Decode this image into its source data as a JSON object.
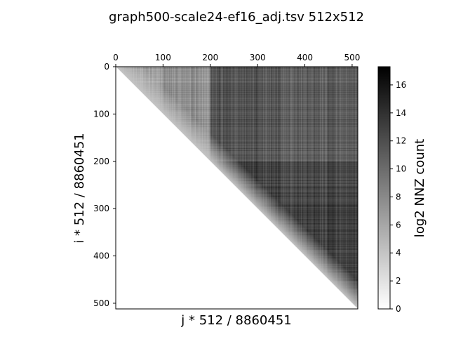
{
  "chart_data": {
    "type": "heatmap",
    "title": "graph500-scale24-ef16_adj.tsv 512x512",
    "xlabel": "j * 512 / 8860451",
    "ylabel": "i * 512 / 8860451",
    "matrix_size": 512,
    "triangle": "upper",
    "x_axis_position": "top",
    "xlim": [
      0,
      512
    ],
    "ylim": [
      512,
      0
    ],
    "x_ticks": [
      0,
      100,
      200,
      300,
      400,
      500
    ],
    "y_ticks": [
      0,
      100,
      200,
      300,
      400,
      500
    ],
    "colormap": "Greys",
    "colorbar": {
      "label": "log2 NNZ count",
      "min": 0,
      "max": 17.3,
      "ticks": [
        0,
        2,
        4,
        6,
        8,
        10,
        12,
        14,
        16
      ]
    },
    "value_profile": {
      "description_of_tone": "estimated log2 NNZ count level per column band",
      "column_bands": [
        {
          "j_start": 0,
          "j_end": 100,
          "level": 6.5
        },
        {
          "j_start": 100,
          "j_end": 200,
          "level": 7.5
        },
        {
          "j_start": 200,
          "j_end": 300,
          "level": 11.5
        },
        {
          "j_start": 300,
          "j_end": 400,
          "level": 11.0
        },
        {
          "j_start": 400,
          "j_end": 512,
          "level": 11.0
        }
      ],
      "row_band_offsets": [
        {
          "i_start": 0,
          "i_end": 200,
          "offset": 0
        },
        {
          "i_start": 200,
          "i_end": 290,
          "offset": 1.5
        },
        {
          "i_start": 290,
          "i_end": 512,
          "offset": 2.0
        }
      ],
      "diagonal_level": 4.0
    },
    "grid": false,
    "legend": "colorbar-right"
  },
  "colors": {
    "low": "#ffffff",
    "high": "#000000",
    "frame": "#000000"
  }
}
